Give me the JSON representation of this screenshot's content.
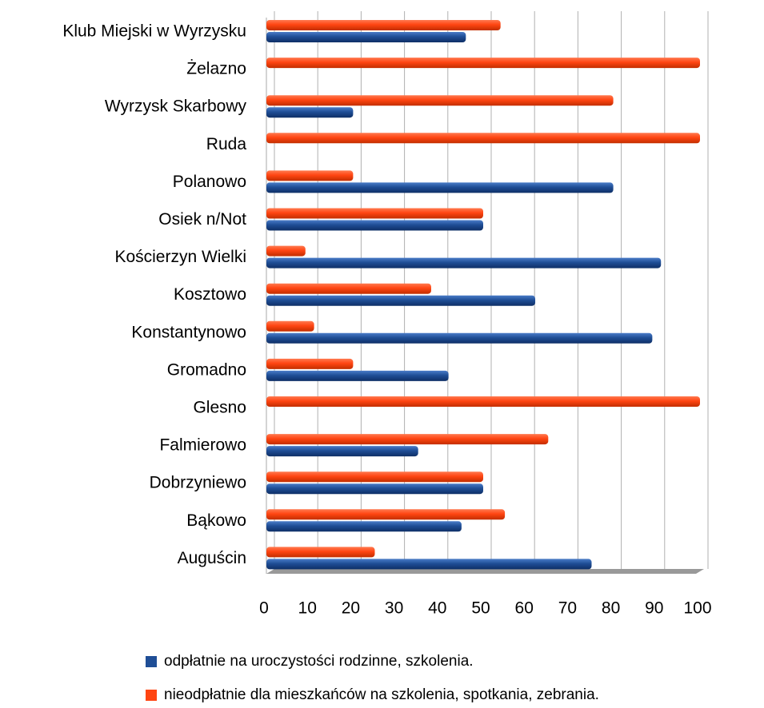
{
  "chart_data": {
    "type": "bar",
    "orientation": "horizontal",
    "categories": [
      "Auguścin",
      "Bąkowo",
      "Dobrzyniewo",
      "Falmierowo",
      "Glesno",
      "Gromadno",
      "Konstantynowo",
      "Kosztowo",
      "Kościerzyn Wielki",
      "Osiek n/Not",
      "Polanowo",
      "Ruda",
      "Wyrzysk Skarbowy",
      "Żelazno",
      "Klub Miejski w Wyrzysku"
    ],
    "series": [
      {
        "name": "odpłatnie na uroczystości rodzinne, szkolenia.",
        "color": "#1f4e96",
        "values": [
          75,
          45,
          50,
          35,
          0,
          42,
          89,
          62,
          91,
          50,
          80,
          0,
          20,
          0,
          46
        ]
      },
      {
        "name": "nieodpłatnie dla mieszkańców na szkolenia, spotkania, zebrania.",
        "color": "#ff4512",
        "values": [
          25,
          55,
          50,
          65,
          100,
          20,
          11,
          38,
          9,
          50,
          20,
          100,
          80,
          100,
          54
        ]
      }
    ],
    "xlim": [
      0,
      100
    ],
    "xticks": [
      0,
      10,
      20,
      30,
      40,
      50,
      60,
      70,
      80,
      90,
      100
    ],
    "grid": true,
    "legend": "bottom"
  }
}
